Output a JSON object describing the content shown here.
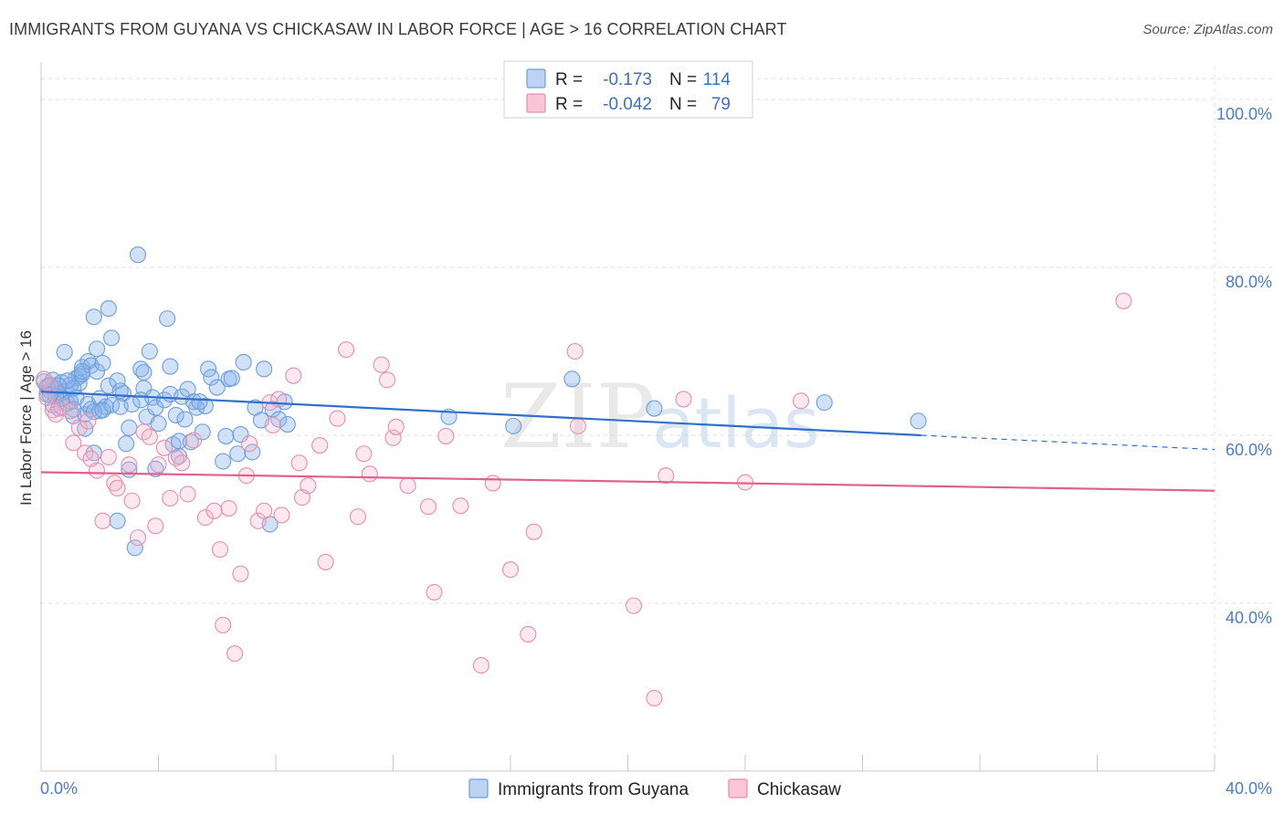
{
  "header": {
    "title": "IMMIGRANTS FROM GUYANA VS CHICKASAW IN LABOR FORCE | AGE > 16 CORRELATION CHART",
    "source": "Source: ZipAtlas.com"
  },
  "watermark": {
    "zip": "ZIP",
    "atlas": "atlas"
  },
  "chart_data": {
    "type": "scatter",
    "ylabel": "In Labor Force | Age > 16",
    "xlim": [
      0,
      40
    ],
    "ylim": [
      20,
      105
    ],
    "x_ticks": [
      {
        "value": 0,
        "label": "0.0%"
      },
      {
        "value": 40,
        "label": "40.0%"
      }
    ],
    "y_ticks": [
      {
        "value": 40,
        "label": "40.0%"
      },
      {
        "value": 60,
        "label": "60.0%"
      },
      {
        "value": 80,
        "label": "80.0%"
      },
      {
        "value": 100,
        "label": "100.0%"
      }
    ],
    "grid": true,
    "legend_position": "top-center",
    "colors": {
      "blue": "#5b8fd9",
      "blue_line": "#2f6fce",
      "pink": "#e87fa4",
      "pink_line": "#e0608f"
    },
    "series": [
      {
        "name": "Immigrants from Guyana",
        "r_label": "R =",
        "r_value": "-0.173",
        "n_label": "N =",
        "n_value": "114",
        "trend": {
          "x0": 0,
          "y0": 65.2,
          "x1": 30,
          "y1": 60.0,
          "dash_to_x": 40,
          "dash_to_y": 58.3
        },
        "points": [
          [
            0.1,
            66.4
          ],
          [
            0.2,
            65.8
          ],
          [
            0.2,
            64.9
          ],
          [
            0.3,
            66.0
          ],
          [
            0.3,
            65.3
          ],
          [
            0.4,
            63.6
          ],
          [
            0.4,
            66.6
          ],
          [
            0.5,
            65.5
          ],
          [
            0.6,
            64.9
          ],
          [
            0.6,
            63.2
          ],
          [
            0.7,
            66.3
          ],
          [
            0.7,
            64.4
          ],
          [
            0.8,
            69.9
          ],
          [
            0.8,
            65.2
          ],
          [
            0.9,
            63.8
          ],
          [
            1.0,
            66.0
          ],
          [
            1.0,
            64.0
          ],
          [
            1.1,
            63.1
          ],
          [
            1.1,
            62.3
          ],
          [
            1.2,
            66.8
          ],
          [
            1.2,
            64.5
          ],
          [
            1.3,
            67.0
          ],
          [
            1.3,
            66.2
          ],
          [
            1.4,
            68.1
          ],
          [
            1.4,
            67.3
          ],
          [
            1.5,
            62.5
          ],
          [
            1.5,
            60.8
          ],
          [
            1.6,
            68.8
          ],
          [
            1.6,
            63.7
          ],
          [
            1.7,
            68.3
          ],
          [
            1.7,
            63.1
          ],
          [
            1.8,
            74.1
          ],
          [
            1.8,
            57.9
          ],
          [
            1.9,
            70.3
          ],
          [
            1.9,
            67.6
          ],
          [
            2.0,
            64.4
          ],
          [
            2.0,
            62.9
          ],
          [
            2.1,
            68.6
          ],
          [
            2.2,
            63.4
          ],
          [
            2.3,
            75.1
          ],
          [
            2.3,
            65.9
          ],
          [
            2.4,
            71.6
          ],
          [
            2.4,
            63.6
          ],
          [
            2.6,
            66.5
          ],
          [
            2.7,
            63.4
          ],
          [
            2.8,
            65.0
          ],
          [
            2.9,
            59.0
          ],
          [
            3.0,
            60.9
          ],
          [
            3.0,
            55.9
          ],
          [
            3.1,
            63.7
          ],
          [
            3.2,
            46.6
          ],
          [
            3.3,
            81.5
          ],
          [
            3.4,
            67.9
          ],
          [
            3.5,
            65.6
          ],
          [
            3.5,
            67.5
          ],
          [
            3.6,
            62.2
          ],
          [
            3.7,
            70.0
          ],
          [
            3.8,
            64.5
          ],
          [
            3.9,
            56.0
          ],
          [
            3.9,
            63.3
          ],
          [
            4.0,
            61.4
          ],
          [
            4.2,
            64.2
          ],
          [
            4.3,
            73.9
          ],
          [
            4.4,
            64.9
          ],
          [
            4.4,
            68.2
          ],
          [
            4.5,
            58.9
          ],
          [
            4.6,
            62.4
          ],
          [
            4.7,
            57.5
          ],
          [
            4.8,
            64.6
          ],
          [
            4.9,
            61.9
          ],
          [
            5.0,
            65.5
          ],
          [
            5.1,
            59.2
          ],
          [
            5.2,
            64.0
          ],
          [
            5.3,
            63.3
          ],
          [
            5.5,
            60.4
          ],
          [
            5.6,
            63.5
          ],
          [
            5.7,
            67.9
          ],
          [
            5.8,
            66.9
          ],
          [
            6.0,
            65.7
          ],
          [
            6.2,
            56.9
          ],
          [
            6.3,
            59.9
          ],
          [
            6.4,
            66.7
          ],
          [
            6.7,
            57.8
          ],
          [
            6.8,
            60.1
          ],
          [
            6.9,
            68.7
          ],
          [
            7.2,
            58.0
          ],
          [
            7.3,
            63.3
          ],
          [
            7.5,
            61.8
          ],
          [
            7.6,
            67.9
          ],
          [
            7.8,
            49.4
          ],
          [
            7.9,
            63.1
          ],
          [
            8.1,
            61.9
          ],
          [
            8.3,
            64.0
          ],
          [
            8.4,
            61.3
          ],
          [
            13.9,
            62.2
          ],
          [
            16.1,
            61.1
          ],
          [
            18.1,
            66.7
          ],
          [
            20.9,
            63.2
          ],
          [
            26.7,
            63.9
          ],
          [
            29.9,
            61.7
          ],
          [
            2.6,
            49.8
          ],
          [
            4.7,
            59.3
          ],
          [
            0.5,
            64.7
          ],
          [
            1.1,
            65.6
          ],
          [
            0.9,
            66.5
          ],
          [
            2.7,
            65.3
          ],
          [
            3.4,
            64.2
          ],
          [
            5.4,
            64.0
          ],
          [
            6.5,
            66.8
          ],
          [
            1.8,
            62.8
          ],
          [
            0.3,
            64.8
          ],
          [
            0.6,
            65.9
          ],
          [
            1.4,
            67.6
          ],
          [
            2.1,
            63.0
          ]
        ]
      },
      {
        "name": "Chickasaw",
        "r_label": "R =",
        "r_value": "-0.042",
        "n_label": "N =",
        "n_value": "79",
        "trend": {
          "x0": 0,
          "y0": 55.6,
          "x1": 40,
          "y1": 53.4
        },
        "points": [
          [
            0.1,
            66.7
          ],
          [
            0.2,
            64.5
          ],
          [
            0.3,
            65.9
          ],
          [
            0.4,
            63.0
          ],
          [
            0.5,
            62.5
          ],
          [
            0.7,
            63.4
          ],
          [
            1.0,
            62.9
          ],
          [
            1.1,
            59.1
          ],
          [
            1.3,
            60.9
          ],
          [
            1.5,
            57.9
          ],
          [
            1.6,
            61.7
          ],
          [
            1.9,
            55.8
          ],
          [
            2.1,
            49.8
          ],
          [
            2.3,
            57.4
          ],
          [
            2.5,
            54.3
          ],
          [
            2.6,
            53.7
          ],
          [
            3.0,
            56.5
          ],
          [
            3.1,
            52.2
          ],
          [
            3.3,
            47.8
          ],
          [
            3.5,
            60.4
          ],
          [
            3.7,
            59.8
          ],
          [
            3.9,
            49.2
          ],
          [
            4.0,
            56.5
          ],
          [
            4.2,
            58.5
          ],
          [
            4.4,
            52.5
          ],
          [
            4.6,
            57.3
          ],
          [
            4.8,
            56.7
          ],
          [
            5.0,
            53.0
          ],
          [
            5.2,
            59.4
          ],
          [
            5.6,
            50.2
          ],
          [
            5.9,
            51.0
          ],
          [
            6.1,
            46.4
          ],
          [
            6.2,
            37.4
          ],
          [
            6.4,
            51.3
          ],
          [
            6.6,
            34.0
          ],
          [
            6.8,
            43.5
          ],
          [
            7.0,
            55.2
          ],
          [
            7.1,
            59.0
          ],
          [
            7.4,
            49.8
          ],
          [
            7.6,
            51.0
          ],
          [
            7.8,
            63.9
          ],
          [
            7.9,
            61.2
          ],
          [
            8.1,
            64.3
          ],
          [
            8.2,
            50.5
          ],
          [
            8.6,
            67.1
          ],
          [
            8.8,
            56.7
          ],
          [
            8.9,
            52.6
          ],
          [
            9.1,
            54.0
          ],
          [
            9.5,
            58.8
          ],
          [
            9.7,
            44.9
          ],
          [
            10.1,
            62.0
          ],
          [
            10.4,
            70.2
          ],
          [
            10.8,
            50.3
          ],
          [
            11.0,
            57.8
          ],
          [
            11.2,
            55.4
          ],
          [
            11.6,
            68.4
          ],
          [
            11.8,
            66.6
          ],
          [
            12.0,
            59.7
          ],
          [
            12.1,
            61.0
          ],
          [
            12.5,
            54.0
          ],
          [
            13.2,
            51.5
          ],
          [
            13.4,
            41.3
          ],
          [
            13.8,
            59.9
          ],
          [
            14.3,
            51.6
          ],
          [
            15.0,
            32.6
          ],
          [
            15.4,
            54.3
          ],
          [
            16.0,
            44.0
          ],
          [
            16.6,
            36.3
          ],
          [
            16.8,
            48.5
          ],
          [
            18.2,
            70.0
          ],
          [
            18.3,
            61.1
          ],
          [
            20.2,
            39.7
          ],
          [
            20.9,
            28.7
          ],
          [
            21.3,
            55.2
          ],
          [
            21.9,
            64.3
          ],
          [
            24.0,
            54.4
          ],
          [
            25.9,
            64.1
          ],
          [
            36.9,
            76.0
          ],
          [
            1.7,
            57.2
          ]
        ]
      }
    ]
  }
}
